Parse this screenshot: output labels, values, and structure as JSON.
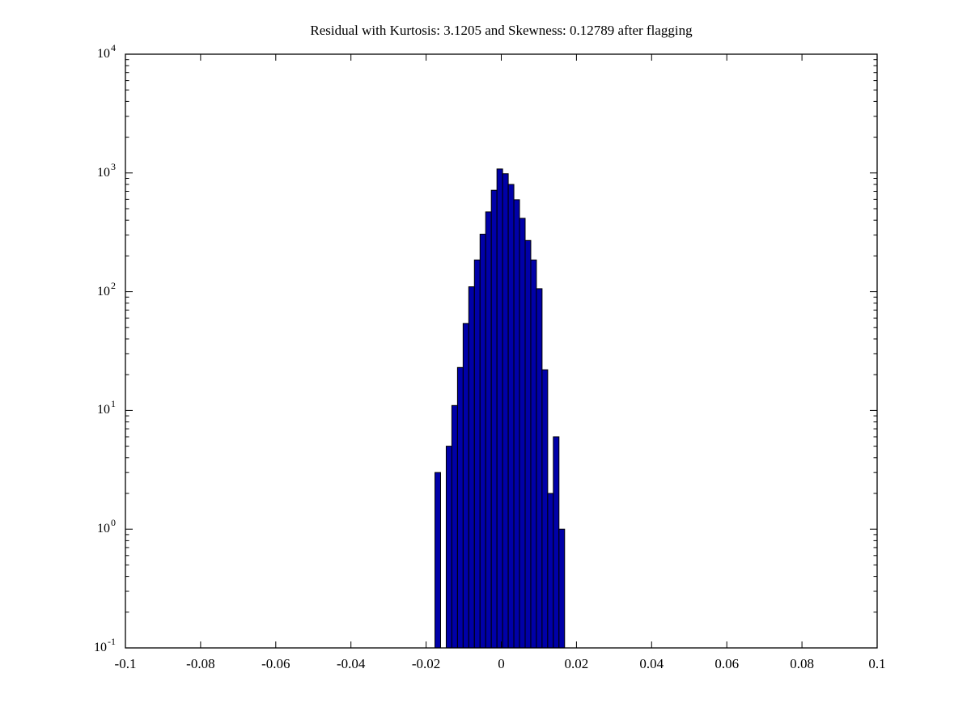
{
  "chart_data": {
    "type": "bar",
    "subtype": "histogram",
    "title": "Residual with Kurtosis: 3.1205 and Skewness: 0.12789 after flagging",
    "x_axis": {
      "min": -0.1,
      "max": 0.1,
      "tick_values": [
        -0.1,
        -0.08,
        -0.06,
        -0.04,
        -0.02,
        0,
        0.02,
        0.04,
        0.06,
        0.08,
        0.1
      ],
      "tick_labels": [
        "-0.1",
        "-0.08",
        "-0.06",
        "-0.04",
        "-0.02",
        "0",
        "0.02",
        "0.04",
        "0.06",
        "0.08",
        "0.1"
      ]
    },
    "y_axis": {
      "scale": "log",
      "min_exp": -1,
      "max_exp": 4,
      "base_label": "10",
      "tick_exponents": [
        4,
        3,
        2,
        1,
        0,
        -1
      ],
      "minor_ticks": true
    },
    "ylim": [
      "1e-1",
      "1e4"
    ],
    "grid": false,
    "bin_width": 0.0015,
    "bins": [
      {
        "x": -0.0169,
        "count": 3
      },
      {
        "x": -0.0154,
        "count": 0
      },
      {
        "x": -0.0139,
        "count": 5
      },
      {
        "x": -0.0124,
        "count": 11
      },
      {
        "x": -0.0109,
        "count": 23
      },
      {
        "x": -0.0094,
        "count": 54
      },
      {
        "x": -0.0079,
        "count": 110
      },
      {
        "x": -0.0064,
        "count": 185
      },
      {
        "x": -0.0049,
        "count": 305
      },
      {
        "x": -0.0034,
        "count": 470
      },
      {
        "x": -0.0019,
        "count": 715
      },
      {
        "x": -0.0004,
        "count": 1080
      },
      {
        "x": 0.0011,
        "count": 985
      },
      {
        "x": 0.0026,
        "count": 800
      },
      {
        "x": 0.0041,
        "count": 595
      },
      {
        "x": 0.0056,
        "count": 415
      },
      {
        "x": 0.0071,
        "count": 270
      },
      {
        "x": 0.0086,
        "count": 185
      },
      {
        "x": 0.0101,
        "count": 106
      },
      {
        "x": 0.0116,
        "count": 22
      },
      {
        "x": 0.0131,
        "count": 2
      },
      {
        "x": 0.0146,
        "count": 6
      },
      {
        "x": 0.0161,
        "count": 1
      }
    ],
    "colors": {
      "bar_face": "#0000a8",
      "bar_edge": "#000000",
      "axis": "#000000",
      "text": "#000000",
      "background": "#ffffff"
    }
  }
}
